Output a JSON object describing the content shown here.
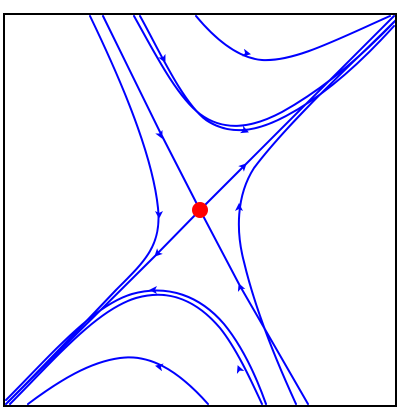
{
  "diagram": {
    "type": "phase-portrait",
    "equilibrium": {
      "kind": "saddle",
      "color": "#ff0000"
    },
    "colors": {
      "trajectory": "#0000ff",
      "frame": "#000000",
      "background": "#ffffff"
    }
  }
}
